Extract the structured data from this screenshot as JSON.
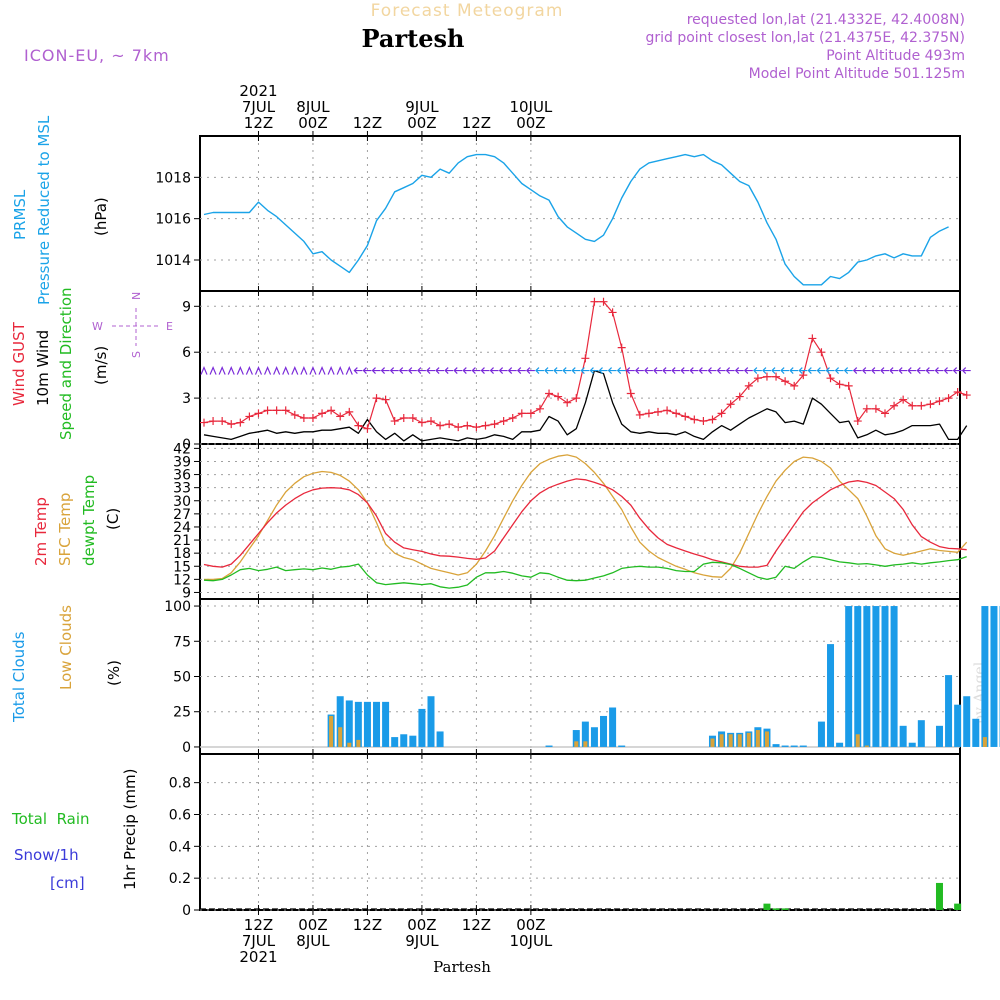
{
  "header": {
    "subtitle": "Forecast Meteogram",
    "station": "Partesh",
    "model": "ICON-EU, ~ 7km",
    "info_lines": [
      "requested lon,lat (21.4332E, 42.4008N)",
      "grid point closest lon,lat (21.4375E, 42.375N)",
      "Point Altitude 493m",
      "Model Point Altitude 501.125m"
    ],
    "footer_station": "Partesh",
    "watermark": "by Angel"
  },
  "colors": {
    "pressure": "#1aa3e8",
    "gust": "#e8283c",
    "wind": "#000000",
    "temp2m": "#e8283c",
    "sfc": "#d9a33a",
    "dewpt": "#22bb22",
    "total_clouds": "#1a9be8",
    "low_clouds": "#d9a33a",
    "rain": "#22bb22",
    "snow": "#3a3ad9",
    "arrow_purple": "#7a2ad9",
    "label_purple": "#b060d0"
  },
  "time_axis": {
    "top_labels": [
      {
        "index": 6,
        "lines": [
          "2021",
          "7JUL",
          "12Z"
        ]
      },
      {
        "index": 12,
        "lines": [
          "8JUL",
          "00Z"
        ]
      },
      {
        "index": 18,
        "lines": [
          "12Z"
        ]
      },
      {
        "index": 24,
        "lines": [
          "9JUL",
          "00Z"
        ]
      },
      {
        "index": 30,
        "lines": [
          "12Z"
        ]
      },
      {
        "index": 36,
        "lines": [
          "10JUL",
          "00Z"
        ]
      }
    ],
    "bottom_labels": [
      {
        "index": 6,
        "lines": [
          "12Z",
          "7JUL",
          "2021"
        ]
      },
      {
        "index": 12,
        "lines": [
          "00Z",
          "8JUL"
        ]
      },
      {
        "index": 18,
        "lines": [
          "12Z"
        ]
      },
      {
        "index": 24,
        "lines": [
          "00Z",
          "9JUL"
        ]
      },
      {
        "index": 30,
        "lines": [
          "12Z"
        ]
      },
      {
        "index": 36,
        "lines": [
          "00Z",
          "10JUL"
        ]
      }
    ]
  },
  "panel_labels": {
    "pressure": [
      "PRMSL",
      "Pressure Reduced to MSL",
      "(hPa)"
    ],
    "wind": [
      "Wind GUST",
      "10m Wind",
      "Speed and Direction",
      "(m/s)"
    ],
    "compass": {
      "n": "N",
      "s": "S",
      "w": "W",
      "e": "E"
    },
    "temp": [
      "2m Temp",
      "SFC Temp",
      "dewpt Temp",
      "(C)"
    ],
    "clouds": [
      "Total Clouds",
      "Low Clouds",
      "(%)"
    ],
    "precip": [
      "Total  Rain",
      "Snow/1h",
      "[cm]",
      "1hr Precip (mm)"
    ]
  },
  "chart_data": [
    {
      "type": "line",
      "title": "PRMSL Pressure Reduced to MSL",
      "ylabel": "hPa",
      "ylim": [
        1012.5,
        1020.0
      ],
      "yticks": [
        1014,
        1016,
        1018
      ],
      "x_start_hours_from_7jul12z": -5.6,
      "x_step_hours": 0.976,
      "series": [
        {
          "name": "PRMSL",
          "values": [
            1016.2,
            1016.3,
            1016.3,
            1016.3,
            1016.3,
            1016.3,
            1016.8,
            1016.4,
            1016.1,
            1015.7,
            1015.3,
            1014.9,
            1014.3,
            1014.4,
            1014.0,
            1013.7,
            1013.4,
            1014.0,
            1014.7,
            1015.9,
            1016.5,
            1017.3,
            1017.5,
            1017.7,
            1018.1,
            1018.0,
            1018.4,
            1018.2,
            1018.7,
            1019.0,
            1019.1,
            1019.1,
            1019.0,
            1018.7,
            1018.2,
            1017.7,
            1017.4,
            1017.1,
            1016.9,
            1016.1,
            1015.6,
            1015.3,
            1015.0,
            1014.9,
            1015.2,
            1016.0,
            1017.0,
            1017.8,
            1018.4,
            1018.7,
            1018.8,
            1018.9,
            1019.0,
            1019.1,
            1019.0,
            1019.1,
            1018.8,
            1018.6,
            1018.2,
            1017.8,
            1017.6,
            1016.8,
            1015.8,
            1015.0,
            1013.8,
            1013.2,
            1012.8,
            1012.8,
            1012.8,
            1013.2,
            1013.1,
            1013.4,
            1013.9,
            1014.0,
            1014.2,
            1014.3,
            1014.1,
            1014.3,
            1014.2,
            1014.2,
            1015.1,
            1015.4,
            1015.6
          ]
        }
      ]
    },
    {
      "type": "line",
      "title": "Wind GUST / 10m Wind Speed and Direction",
      "ylabel": "m/s",
      "ylim": [
        0,
        10
      ],
      "yticks": [
        0,
        3,
        6,
        9
      ],
      "series": [
        {
          "name": "Wind GUST",
          "values": [
            1.4,
            1.5,
            1.5,
            1.3,
            1.4,
            1.8,
            2.0,
            2.2,
            2.2,
            2.2,
            1.9,
            1.7,
            1.7,
            2.0,
            2.2,
            1.8,
            2.1,
            1.2,
            1.0,
            3.0,
            2.9,
            1.5,
            1.7,
            1.7,
            1.4,
            1.5,
            1.2,
            1.3,
            1.1,
            1.2,
            1.1,
            1.2,
            1.3,
            1.5,
            1.7,
            2.0,
            2.0,
            2.3,
            3.3,
            3.1,
            2.7,
            3.0,
            5.6,
            9.3,
            9.3,
            8.6,
            6.3,
            3.3,
            1.9,
            2.0,
            2.1,
            2.2,
            2.0,
            1.8,
            1.6,
            1.5,
            1.6,
            2.0,
            2.6,
            3.1,
            3.8,
            4.3,
            4.4,
            4.4,
            4.1,
            3.8,
            4.5,
            6.9,
            6.0,
            4.3,
            3.9,
            3.8,
            1.5,
            2.3,
            2.3,
            2.0,
            2.5,
            2.9,
            2.5,
            2.5,
            2.6,
            2.8,
            3.0,
            3.4,
            3.2
          ]
        },
        {
          "name": "10m Wind",
          "values": [
            0.6,
            0.5,
            0.4,
            0.3,
            0.5,
            0.7,
            0.8,
            0.9,
            0.7,
            0.8,
            0.7,
            0.8,
            0.8,
            0.9,
            0.9,
            1.0,
            1.1,
            0.7,
            1.6,
            0.8,
            0.3,
            0.7,
            0.2,
            0.6,
            0.2,
            0.3,
            0.4,
            0.3,
            0.2,
            0.4,
            0.3,
            0.4,
            0.6,
            0.5,
            0.3,
            0.8,
            0.8,
            0.9,
            1.8,
            1.5,
            0.6,
            1.0,
            2.7,
            4.8,
            4.6,
            2.7,
            1.3,
            0.8,
            0.7,
            0.8,
            0.7,
            0.7,
            0.6,
            0.8,
            0.5,
            0.3,
            0.8,
            1.2,
            0.9,
            1.3,
            1.7,
            2.0,
            2.3,
            2.1,
            1.4,
            1.5,
            1.3,
            3.0,
            2.6,
            2.0,
            1.4,
            1.5,
            0.4,
            0.6,
            0.9,
            0.6,
            0.7,
            0.9,
            1.2,
            1.2,
            1.2,
            1.3,
            0.3,
            0.3,
            1.2
          ]
        }
      ]
    },
    {
      "type": "line",
      "title": "2m Temp / SFC Temp / dewpt Temp",
      "ylabel": "C",
      "ylim": [
        7.5,
        43.0
      ],
      "yticks": [
        9,
        12,
        15,
        18,
        21,
        24,
        27,
        30,
        33,
        36,
        39,
        42
      ],
      "series": [
        {
          "name": "2m Temp",
          "values": [
            15.4,
            15.0,
            14.8,
            15.5,
            17.5,
            20.0,
            22.5,
            25.0,
            27.2,
            29.0,
            30.5,
            31.7,
            32.5,
            32.9,
            33.0,
            32.9,
            32.5,
            31.4,
            29.5,
            26.5,
            22.5,
            20.5,
            19.2,
            18.8,
            18.4,
            17.8,
            17.4,
            17.3,
            17.1,
            16.8,
            16.6,
            16.9,
            18.5,
            21.5,
            24.5,
            27.5,
            30.0,
            31.8,
            33.0,
            33.8,
            34.5,
            35.0,
            34.8,
            34.2,
            33.5,
            32.5,
            31.0,
            29.0,
            26.0,
            23.5,
            21.5,
            20.0,
            19.2,
            18.5,
            17.8,
            17.2,
            16.5,
            16.0,
            15.5,
            15.0,
            14.8,
            14.8,
            15.2,
            18.5,
            21.5,
            24.5,
            27.5,
            29.5,
            31.0,
            32.5,
            33.5,
            34.3,
            34.6,
            34.2,
            33.5,
            32.0,
            30.5,
            28.0,
            24.5,
            21.8,
            20.5,
            19.5,
            19.1,
            19.0,
            18.8
          ]
        },
        {
          "name": "SFC Temp",
          "values": [
            12.0,
            12.0,
            12.2,
            13.5,
            16.0,
            19.0,
            22.0,
            25.5,
            29.0,
            32.0,
            34.0,
            35.5,
            36.3,
            36.7,
            36.5,
            35.8,
            34.5,
            32.5,
            29.5,
            25.0,
            20.0,
            18.0,
            17.0,
            16.5,
            15.5,
            14.5,
            14.0,
            13.5,
            13.0,
            13.5,
            15.5,
            18.5,
            22.0,
            26.0,
            30.0,
            33.5,
            36.5,
            38.5,
            39.5,
            40.2,
            40.5,
            40.0,
            38.5,
            36.5,
            34.0,
            31.0,
            28.0,
            24.0,
            20.5,
            18.5,
            17.0,
            16.0,
            15.0,
            14.3,
            13.5,
            13.0,
            12.6,
            12.5,
            14.5,
            18.0,
            22.5,
            27.0,
            31.0,
            34.5,
            37.0,
            39.0,
            40.0,
            39.8,
            39.0,
            37.5,
            34.5,
            32.5,
            30.5,
            26.5,
            22.0,
            19.0,
            18.0,
            17.5,
            18.0,
            18.5,
            19.0,
            18.6,
            18.4,
            18.2,
            20.5
          ]
        },
        {
          "name": "dewpt Temp",
          "values": [
            11.8,
            11.7,
            12.0,
            13.0,
            14.2,
            14.5,
            14.0,
            14.3,
            14.8,
            14.0,
            14.2,
            14.4,
            14.2,
            14.6,
            14.3,
            14.8,
            15.0,
            15.5,
            13.0,
            11.2,
            10.8,
            11.0,
            11.2,
            11.0,
            10.8,
            11.0,
            10.3,
            10.0,
            10.2,
            10.7,
            12.5,
            13.5,
            13.5,
            13.8,
            13.4,
            12.8,
            12.5,
            13.5,
            13.3,
            12.5,
            11.8,
            11.7,
            11.8,
            12.3,
            12.8,
            13.5,
            14.5,
            14.8,
            15.0,
            14.8,
            14.8,
            14.5,
            14.0,
            13.8,
            13.8,
            15.5,
            15.9,
            15.8,
            15.4,
            14.5,
            13.5,
            12.5,
            12.0,
            12.5,
            15.0,
            14.5,
            16.0,
            17.2,
            17.0,
            16.5,
            16.0,
            15.8,
            15.5,
            15.6,
            15.3,
            15.0,
            15.3,
            15.5,
            15.8,
            15.5,
            15.8,
            16.0,
            16.3,
            16.5,
            17.2
          ]
        }
      ]
    },
    {
      "type": "bar",
      "title": "Total Clouds / Low Clouds",
      "ylabel": "%",
      "ylim": [
        -5,
        105
      ],
      "yticks": [
        0,
        25,
        50,
        75,
        100
      ],
      "series": [
        {
          "name": "Total Clouds",
          "values": [
            0,
            0,
            0,
            0,
            0,
            0,
            0,
            0,
            0,
            0,
            0,
            0,
            0,
            0,
            23,
            36,
            33,
            32,
            32,
            32,
            32,
            7,
            9,
            8,
            27,
            36,
            11,
            0,
            0,
            0,
            0,
            0,
            0,
            0,
            0,
            0,
            0,
            0,
            1,
            0,
            0,
            12,
            18,
            14,
            22,
            28,
            1,
            0,
            0,
            0,
            0,
            0,
            0,
            0,
            0,
            0,
            8,
            11,
            10,
            10,
            11,
            14,
            13,
            2,
            1,
            1,
            1,
            0,
            18,
            73,
            3,
            100,
            100,
            100,
            100,
            100,
            100,
            15,
            3,
            19,
            0,
            15,
            51,
            30,
            36,
            20,
            100,
            100,
            100
          ]
        },
        {
          "name": "Low Clouds",
          "values": [
            0,
            0,
            0,
            0,
            0,
            0,
            0,
            0,
            0,
            0,
            0,
            0,
            0,
            0,
            22,
            14,
            3,
            5,
            0,
            0,
            0,
            0,
            0,
            0,
            0,
            0,
            0,
            0,
            0,
            0,
            0,
            0,
            0,
            0,
            0,
            0,
            0,
            0,
            0,
            0,
            0,
            4,
            4,
            0,
            0,
            0,
            0,
            0,
            0,
            0,
            0,
            0,
            0,
            0,
            0,
            0,
            6,
            9,
            9,
            9,
            10,
            12,
            11,
            0,
            0,
            0,
            0,
            0,
            0,
            0,
            0,
            0,
            9,
            1,
            0,
            0,
            0,
            0,
            0,
            0,
            0,
            0,
            0,
            0,
            0,
            0,
            7,
            0,
            0
          ]
        }
      ]
    },
    {
      "type": "bar",
      "title": "1hr Precip",
      "ylabel": "mm",
      "ylim": [
        0,
        0.98
      ],
      "yticks": [
        0,
        0.2,
        0.4,
        0.6,
        0.8
      ],
      "series": [
        {
          "name": "Total Rain",
          "points": [
            {
              "index": 62,
              "value": 0.04
            },
            {
              "index": 63,
              "value": 0.01
            },
            {
              "index": 64,
              "value": 0.01
            },
            {
              "index": 81,
              "value": 0.17
            },
            {
              "index": 83,
              "value": 0.04
            }
          ]
        },
        {
          "name": "Snow/1h",
          "points": []
        }
      ]
    }
  ]
}
